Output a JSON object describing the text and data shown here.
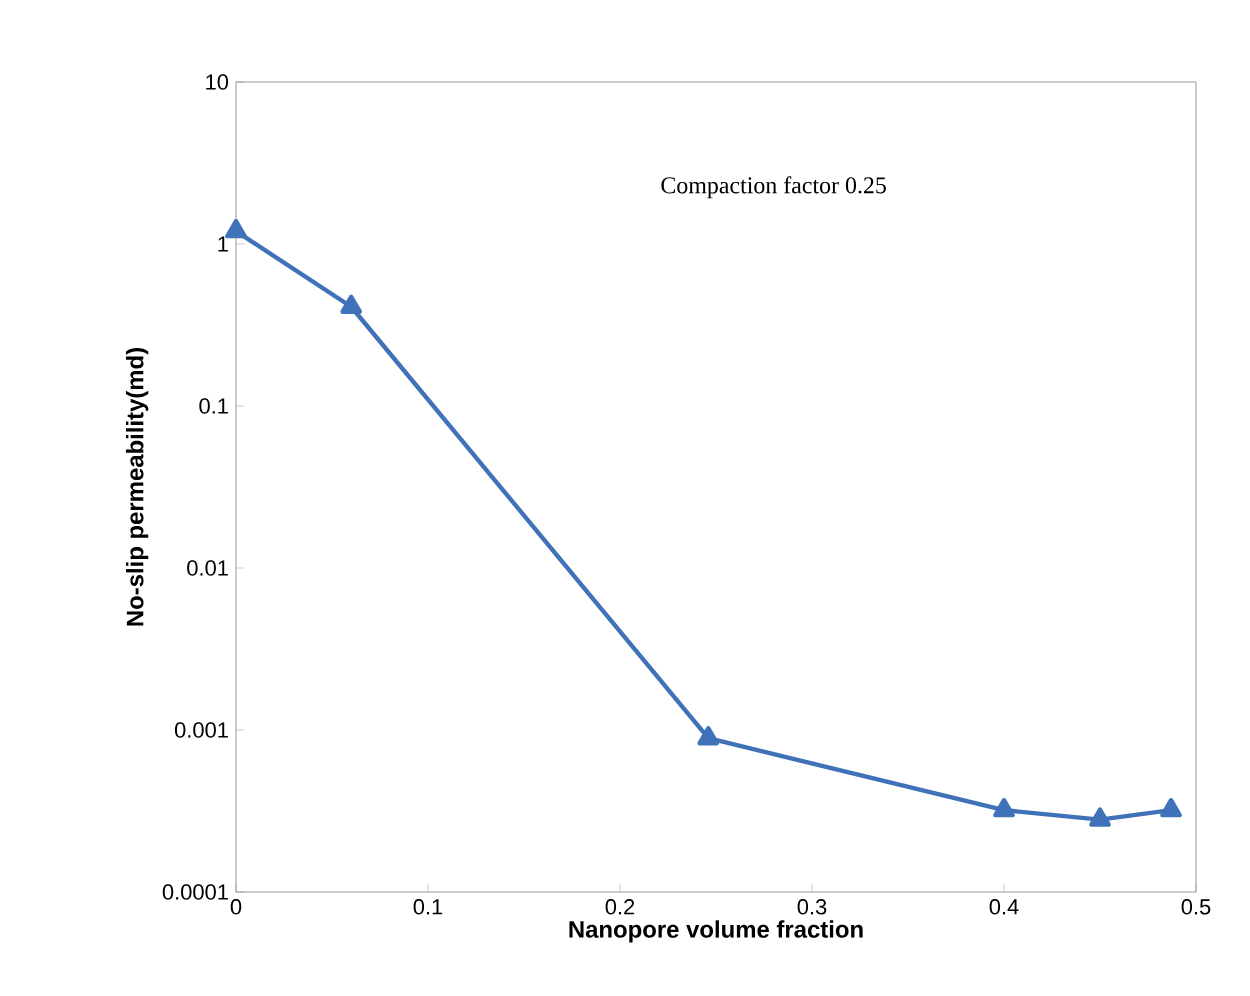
{
  "chart_data": {
    "type": "line",
    "xlabel": "Nanopore volume fraction",
    "ylabel": "No-slip permeability(md)",
    "annotations": [
      "Compaction factor 0.25"
    ],
    "log": "y",
    "grid": false,
    "legend": false,
    "marker": "triangle",
    "line_style": "solid",
    "xlim": [
      0,
      0.5
    ],
    "xticks": [
      0,
      0.1,
      0.2,
      0.3,
      0.4,
      0.5
    ],
    "ylim": [
      0.0001,
      10
    ],
    "yticks": [
      0.0001,
      0.001,
      0.01,
      0.1,
      1,
      10
    ],
    "x": [
      0,
      0.06,
      0.246,
      0.4,
      0.45,
      0.487
    ],
    "series": [
      {
        "color": "#3f72b9",
        "values": [
          1.2,
          0.41,
          0.00089,
          0.00032,
          0.00028,
          0.00032
        ]
      }
    ]
  }
}
